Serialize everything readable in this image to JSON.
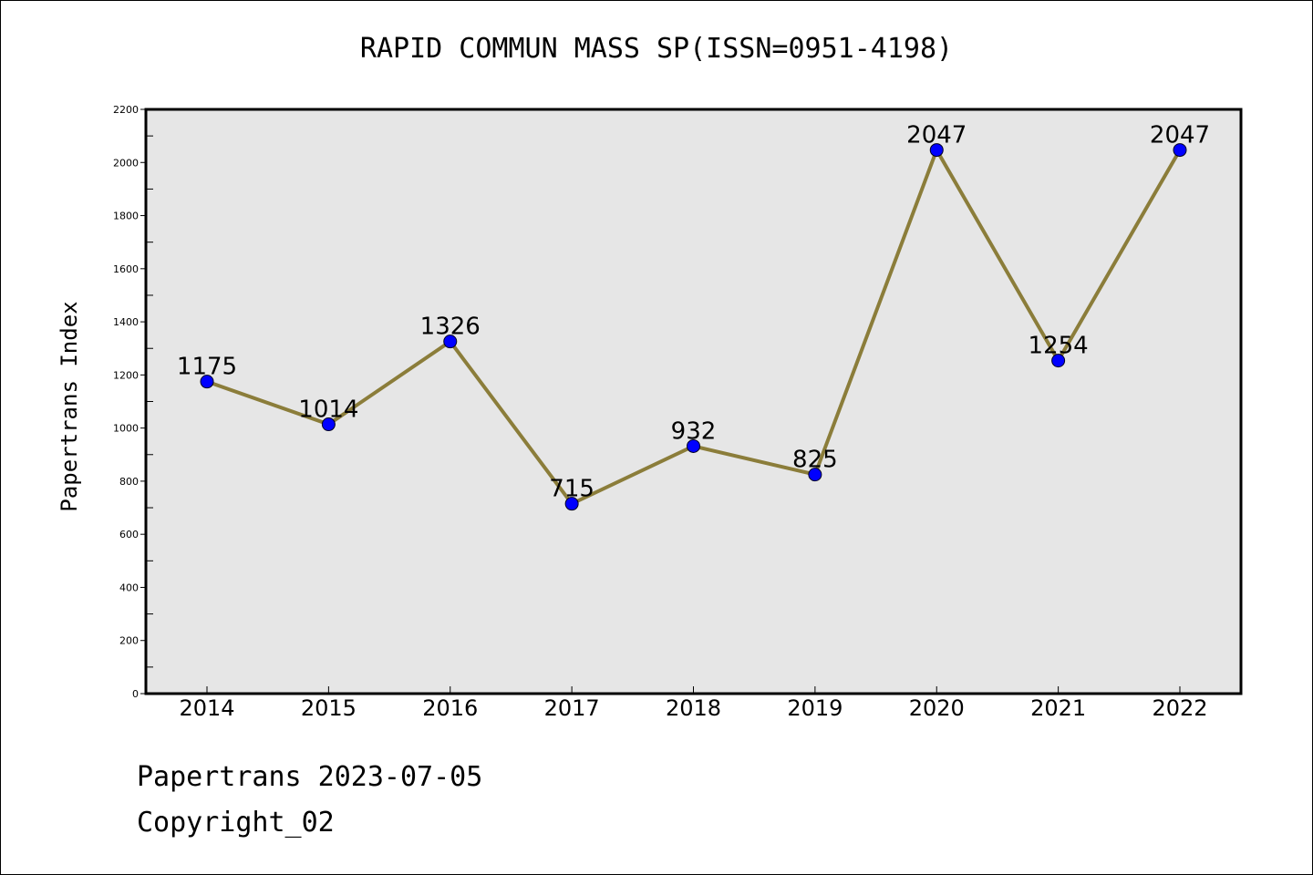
{
  "chart_data": {
    "type": "line",
    "title": "RAPID COMMUN MASS SP(ISSN=0951-4198)",
    "xlabel": "",
    "ylabel": "Papertrans Index",
    "categories": [
      "2014",
      "2015",
      "2016",
      "2017",
      "2018",
      "2019",
      "2020",
      "2021",
      "2022"
    ],
    "values": [
      1175,
      1014,
      1326,
      715,
      932,
      825,
      2047,
      1254,
      2047
    ],
    "ylim": [
      0,
      2200
    ],
    "yticks": [
      0,
      200,
      400,
      600,
      800,
      1000,
      1200,
      1400,
      1600,
      1800,
      2000,
      2200
    ],
    "grid": false,
    "colors": {
      "line": "#8b7d3a",
      "marker": "#0000ff",
      "plot_background": "#e6e6e6"
    }
  },
  "footer": {
    "line1": "Papertrans 2023-07-05",
    "line2": "Copyright_02"
  }
}
